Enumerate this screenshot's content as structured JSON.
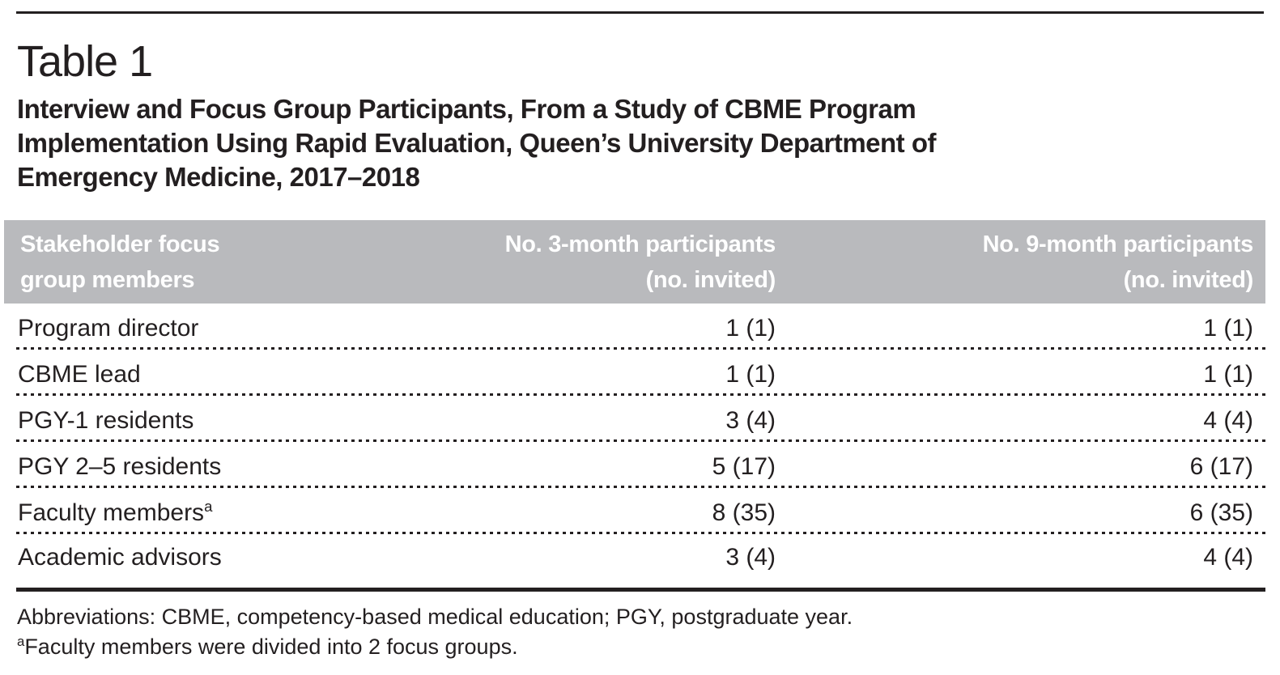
{
  "page": {
    "table_label": "Table 1",
    "title": "Interview and Focus Group Participants, From a Study of CBME Program\nImplementation Using Rapid Evaluation, Queen’s University Department of\nEmergency Medicine, 2017–2018"
  },
  "table": {
    "columns": [
      {
        "label": "Stakeholder focus\ngroup members"
      },
      {
        "label": "No. 3-month participants\n(no. invited)"
      },
      {
        "label": "No. 9-month participants\n(no. invited)"
      }
    ],
    "rows": [
      {
        "stakeholder": "Program director",
        "three_month": "1 (1)",
        "nine_month": "1 (1)"
      },
      {
        "stakeholder": "CBME lead",
        "three_month": "1 (1)",
        "nine_month": "1 (1)"
      },
      {
        "stakeholder": "PGY-1 residents",
        "three_month": "3 (4)",
        "nine_month": "4 (4)"
      },
      {
        "stakeholder": "PGY 2–5 residents",
        "three_month": "5 (17)",
        "nine_month": "6 (17)"
      },
      {
        "stakeholder": "Faculty members",
        "sup": "a",
        "three_month": "8 (35)",
        "nine_month": "6 (35)"
      },
      {
        "stakeholder": "Academic advisors",
        "three_month": "3 (4)",
        "nine_month": "4 (4)"
      }
    ]
  },
  "footnotes": {
    "abbreviations": "Abbreviations: CBME, competency-based medical education; PGY, postgraduate year.",
    "footnote_a_marker": "a",
    "footnote_a_text": "Faculty members were divided into 2 focus groups."
  },
  "colors": {
    "header_background": "#b9babd",
    "header_text": "#ffffff",
    "body_text": "#231f20"
  }
}
